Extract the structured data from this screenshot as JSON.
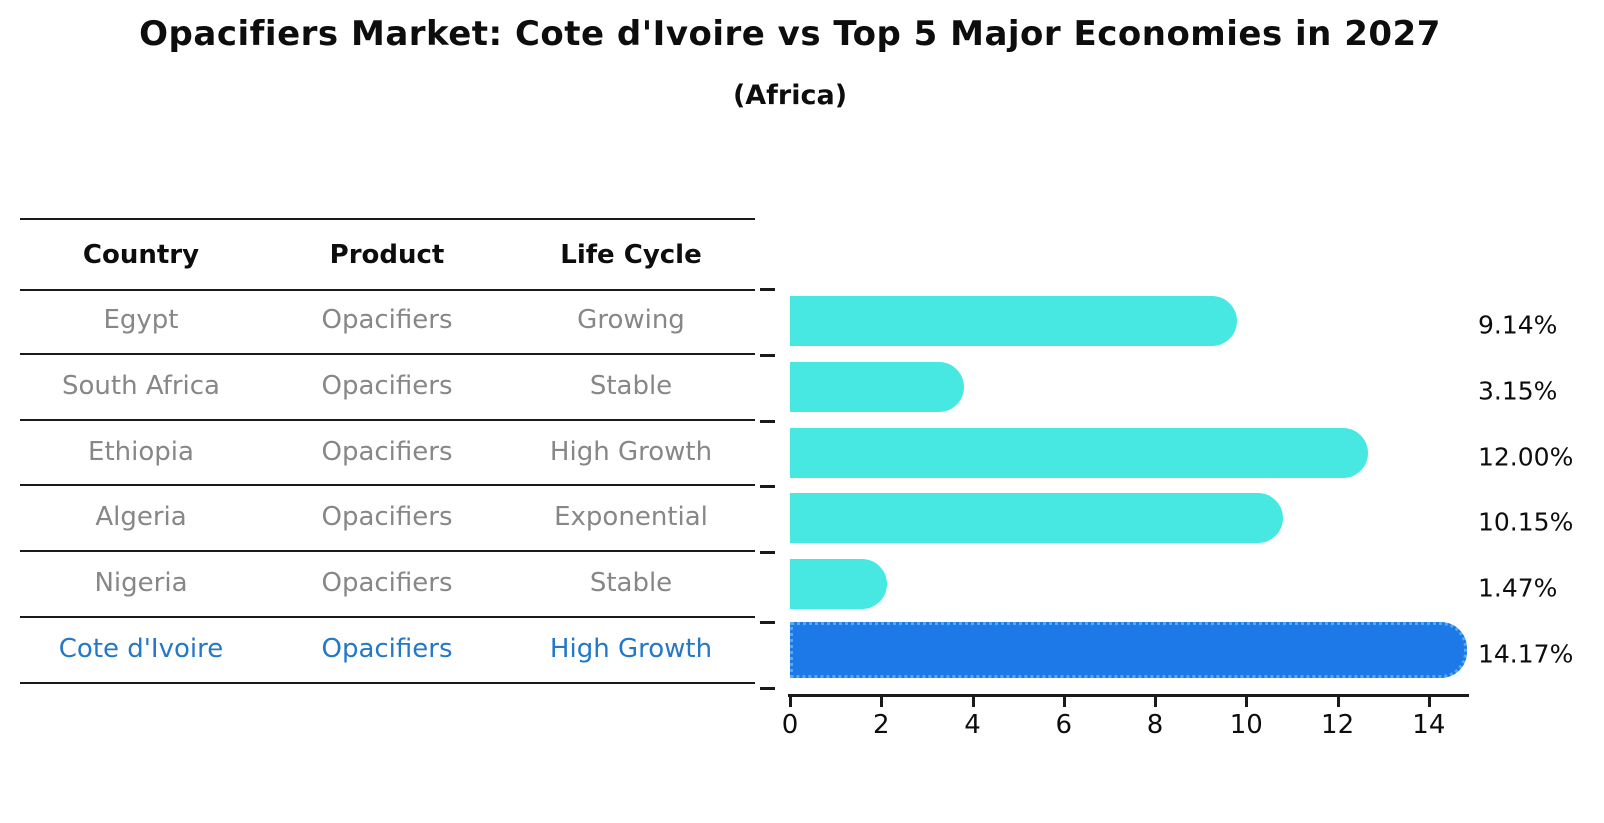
{
  "title": "Opacifiers Market: Cote d'Ivoire vs Top 5 Major Economies in 2027",
  "subtitle": "(Africa)",
  "table": {
    "headers": [
      "Country",
      "Product",
      "Life Cycle"
    ],
    "rows": [
      {
        "country": "Egypt",
        "product": "Opacifiers",
        "life_cycle": "Growing",
        "highlight": false
      },
      {
        "country": "South Africa",
        "product": "Opacifiers",
        "life_cycle": "Stable",
        "highlight": false
      },
      {
        "country": "Ethiopia",
        "product": "Opacifiers",
        "life_cycle": "High Growth",
        "highlight": false
      },
      {
        "country": "Algeria",
        "product": "Opacifiers",
        "life_cycle": "Exponential",
        "highlight": false
      },
      {
        "country": "Nigeria",
        "product": "Opacifiers",
        "life_cycle": "Stable",
        "highlight": true
      }
    ],
    "highlight_row": {
      "country": "Cote d'Ivoire",
      "product": "Opacifiers",
      "life_cycle": "High Growth"
    }
  },
  "chart_data": {
    "type": "bar",
    "orientation": "horizontal",
    "title": "Opacifiers Market: Cote d'Ivoire vs Top 5 Major Economies in 2027",
    "subtitle": "(Africa)",
    "categories": [
      "Egypt",
      "South Africa",
      "Ethiopia",
      "Algeria",
      "Nigeria",
      "Cote d'Ivoire"
    ],
    "values": [
      9.14,
      3.15,
      12.0,
      10.15,
      1.47,
      14.17
    ],
    "value_labels": [
      "9.14%",
      "3.15%",
      "12.00%",
      "10.15%",
      "1.47%",
      "14.17%"
    ],
    "x_ticks": [
      0,
      2,
      4,
      6,
      8,
      10,
      12,
      14
    ],
    "xlim": [
      0,
      14.88
    ],
    "grid": false,
    "legend": "none",
    "bar_color": "#47e8e2",
    "highlight_index": 5,
    "highlight_bar_color": "#1e79e8",
    "highlight_bar_edge_color": "#55a9f0",
    "highlight_text_color": "#2478c8",
    "axis_color": "#1a1a1a",
    "text_gray": "#878787"
  }
}
